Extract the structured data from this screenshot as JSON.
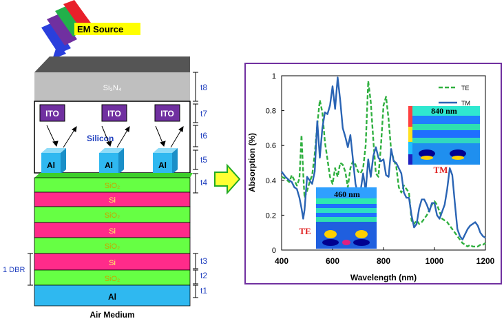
{
  "left_diagram": {
    "source_label": "EM Source",
    "colors": {
      "source_yellow": "#ffff00",
      "red": "#e8202a",
      "green": "#22b04a",
      "purple": "#7030a0",
      "blue": "#2a3fdc"
    },
    "layers": {
      "si3n4": "Si₃N₄",
      "silicon": "Silicon",
      "ito": [
        "ITO",
        "ITO",
        "ITO"
      ],
      "al_particles": [
        "Al",
        "Al",
        "Al"
      ],
      "stack": [
        "SiO₂",
        "Si",
        "SiO₂",
        "Si",
        "SiO₂",
        "Si",
        "SiO₂",
        "Al"
      ],
      "substrate_label": "Air Medium"
    },
    "thickness_labels": [
      "t8",
      "t7",
      "t6",
      "t5",
      "t4",
      "t3",
      "t2",
      "t1"
    ],
    "dbr_label": "1 DBR",
    "layer_colors": {
      "si3n4": "#bfbfbf",
      "top": "#555555",
      "sio2": "#66ff44",
      "si": "#ff2b8a",
      "al": "#2fb8f0",
      "ito": "#7030a0",
      "dim_text": "#1f3fbf"
    }
  },
  "chart_data": {
    "type": "line",
    "xlabel": "Wavelength (nm)",
    "ylabel": "Absorption (%)",
    "xlim": [
      400,
      1200
    ],
    "ylim": [
      0,
      1
    ],
    "xticks": [
      "400",
      "600",
      "800",
      "1000",
      "1200"
    ],
    "yticks": [
      "0",
      "0.2",
      "0.4",
      "0.6",
      "0.8",
      "1"
    ],
    "legend": {
      "position": "top-right"
    },
    "series": [
      {
        "name": "TE",
        "style": "dashed",
        "color": "#30b040",
        "x": [
          400,
          415,
          430,
          440,
          450,
          460,
          470,
          478,
          485,
          490,
          500,
          510,
          520,
          530,
          540,
          550,
          560,
          570,
          580,
          590,
          600,
          610,
          620,
          630,
          640,
          650,
          660,
          670,
          680,
          690,
          700,
          710,
          720,
          730,
          740,
          750,
          760,
          770,
          780,
          790,
          800,
          810,
          820,
          830,
          840,
          850,
          860,
          870,
          880,
          890,
          900,
          910,
          920,
          930,
          940,
          950,
          960,
          970,
          980,
          990,
          1000,
          1010,
          1020,
          1030,
          1040,
          1050,
          1060,
          1070,
          1080,
          1090,
          1100,
          1110,
          1120,
          1130,
          1140,
          1150,
          1160,
          1170,
          1180,
          1190,
          1200
        ],
        "y": [
          0.42,
          0.41,
          0.39,
          0.43,
          0.4,
          0.37,
          0.41,
          0.66,
          0.44,
          0.3,
          0.34,
          0.39,
          0.43,
          0.55,
          0.72,
          0.86,
          0.79,
          0.62,
          0.52,
          0.42,
          0.38,
          0.47,
          0.42,
          0.5,
          0.49,
          0.45,
          0.36,
          0.47,
          0.51,
          0.49,
          0.45,
          0.44,
          0.47,
          0.6,
          0.97,
          0.85,
          0.63,
          0.44,
          0.42,
          0.6,
          0.83,
          0.88,
          0.75,
          0.57,
          0.52,
          0.48,
          0.36,
          0.33,
          0.37,
          0.35,
          0.33,
          0.17,
          0.15,
          0.17,
          0.15,
          0.16,
          0.18,
          0.2,
          0.23,
          0.26,
          0.28,
          0.26,
          0.22,
          0.18,
          0.17,
          0.16,
          0.14,
          0.12,
          0.1,
          0.08,
          0.06,
          0.04,
          0.03,
          0.02,
          0.03,
          0.02,
          0.02,
          0.02,
          0.03,
          0.03,
          0.04
        ]
      },
      {
        "name": "TM",
        "style": "solid",
        "color": "#2a64b4",
        "x": [
          400,
          415,
          430,
          440,
          450,
          460,
          470,
          478,
          485,
          490,
          500,
          510,
          520,
          530,
          540,
          550,
          560,
          570,
          580,
          590,
          600,
          610,
          620,
          630,
          640,
          650,
          660,
          670,
          680,
          690,
          700,
          710,
          720,
          730,
          740,
          750,
          760,
          770,
          780,
          790,
          800,
          810,
          820,
          830,
          840,
          850,
          860,
          870,
          880,
          890,
          900,
          910,
          920,
          930,
          940,
          950,
          960,
          970,
          980,
          990,
          1000,
          1010,
          1020,
          1030,
          1040,
          1050,
          1060,
          1070,
          1080,
          1090,
          1100,
          1110,
          1120,
          1130,
          1140,
          1150,
          1160,
          1170,
          1180,
          1190,
          1200
        ],
        "y": [
          0.45,
          0.42,
          0.4,
          0.39,
          0.36,
          0.35,
          0.3,
          0.24,
          0.18,
          0.23,
          0.42,
          0.4,
          0.38,
          0.45,
          0.74,
          0.53,
          0.7,
          0.79,
          0.78,
          0.83,
          0.94,
          0.81,
          0.99,
          0.86,
          0.7,
          0.65,
          0.59,
          0.66,
          0.52,
          0.38,
          0.32,
          0.34,
          0.44,
          0.34,
          0.52,
          0.42,
          0.54,
          0.59,
          0.53,
          0.51,
          0.52,
          0.43,
          0.42,
          0.58,
          0.51,
          0.5,
          0.47,
          0.44,
          0.33,
          0.3,
          0.3,
          0.2,
          0.13,
          0.15,
          0.24,
          0.29,
          0.29,
          0.26,
          0.22,
          0.27,
          0.27,
          0.2,
          0.18,
          0.22,
          0.26,
          0.35,
          0.47,
          0.43,
          0.27,
          0.12,
          0.08,
          0.06,
          0.09,
          0.12,
          0.14,
          0.15,
          0.16,
          0.14,
          0.1,
          0.08,
          0.07
        ]
      }
    ],
    "insets": [
      {
        "label": "840 nm",
        "mode": "TM"
      },
      {
        "label": "460 nm",
        "mode": "TE"
      }
    ]
  }
}
